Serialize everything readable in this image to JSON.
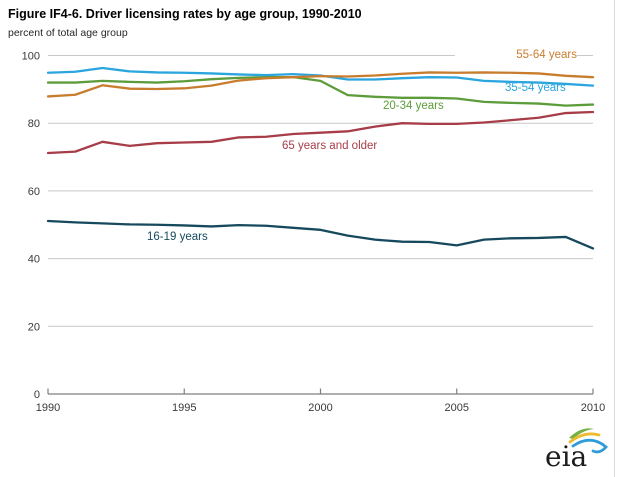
{
  "title": "Figure IF4-6. Driver licensing rates by age group, 1990-2010",
  "unit_label": "percent of total age group",
  "style": {
    "grid_color": "#c9c9c9",
    "axis_color": "#7f7f7f",
    "tick_color": "#3a3a3a",
    "title_color": "#000000",
    "background": "#ffffff"
  },
  "chart_data": {
    "type": "line",
    "title": "Figure IF4-6. Driver licensing rates by age group, 1990-2010",
    "ylabel": "percent of total age group",
    "xlabel": "",
    "xlim": [
      1990,
      2010
    ],
    "ylim": [
      0,
      100
    ],
    "x_ticks": [
      1990,
      1995,
      2000,
      2005,
      2010
    ],
    "y_ticks": [
      0,
      20,
      40,
      60,
      80,
      100
    ],
    "grid": "horizontal",
    "legend_position": "inline-annotations",
    "x": [
      1990,
      1991,
      1992,
      1993,
      1994,
      1995,
      1996,
      1997,
      1998,
      1999,
      2000,
      2001,
      2002,
      2003,
      2004,
      2005,
      2006,
      2007,
      2008,
      2009,
      2010
    ],
    "series": [
      {
        "id": "16-19",
        "name": "16-19 years",
        "color": "#16495e",
        "values": [
          51.1,
          50.7,
          50.4,
          50.1,
          50.0,
          49.8,
          49.5,
          49.9,
          49.7,
          49.1,
          48.5,
          46.8,
          45.6,
          45.0,
          44.9,
          43.9,
          45.6,
          46.0,
          46.1,
          46.4,
          43.0
        ]
      },
      {
        "id": "65-older",
        "name": "65 years and older",
        "color": "#a73d49",
        "values": [
          71.2,
          71.6,
          74.5,
          73.3,
          74.1,
          74.3,
          74.5,
          75.8,
          76.0,
          76.8,
          77.2,
          77.6,
          79.0,
          80.0,
          79.8,
          79.8,
          80.2,
          80.9,
          81.6,
          83.0,
          83.3
        ]
      },
      {
        "id": "20-34",
        "name": "20-34 years",
        "color": "#5d9c3b",
        "values": [
          92.0,
          92.0,
          92.5,
          92.2,
          92.0,
          92.4,
          93.0,
          93.4,
          93.6,
          93.6,
          92.5,
          88.3,
          87.8,
          87.5,
          87.5,
          87.3,
          86.3,
          86.0,
          85.8,
          85.2,
          85.5
        ]
      },
      {
        "id": "35-54",
        "name": "35-54 years",
        "color": "#2aa5dd",
        "values": [
          94.9,
          95.2,
          96.3,
          95.3,
          95.0,
          94.9,
          94.7,
          94.4,
          94.2,
          94.5,
          94.1,
          92.9,
          92.9,
          93.3,
          93.6,
          93.5,
          92.5,
          92.2,
          92.0,
          91.6,
          91.1
        ]
      },
      {
        "id": "55-64",
        "name": "55-64 years",
        "color": "#c87d2e",
        "values": [
          87.9,
          88.4,
          91.2,
          90.2,
          90.1,
          90.3,
          91.1,
          92.6,
          93.3,
          93.6,
          93.9,
          93.8,
          94.1,
          94.6,
          95.0,
          94.9,
          95.0,
          94.9,
          94.7,
          94.0,
          93.6
        ]
      }
    ]
  },
  "logo": {
    "text": "eia"
  }
}
